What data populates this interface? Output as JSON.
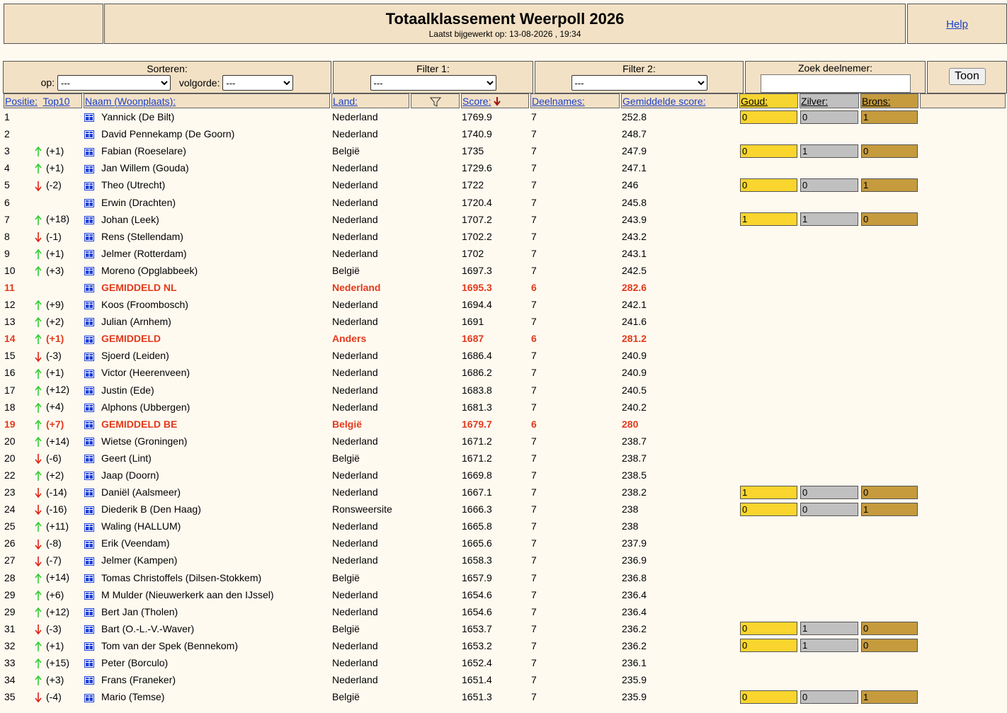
{
  "header": {
    "title": "Totaalklassement Weerpoll 2026",
    "updated": "Laatst bijgewerkt op: 13-08-2026 , 19:34",
    "help": "Help"
  },
  "controls": {
    "sort_label": "Sorteren:",
    "sort_by": "op:",
    "sort_by_value": "---",
    "order": "volgorde:",
    "order_value": "---",
    "filter1": "Filter 1:",
    "filter1_value": "---",
    "filter2": "Filter 2:",
    "filter2_value": "---",
    "search": "Zoek deelnemer:",
    "button": "Toon"
  },
  "table": {
    "columns": {
      "position": "Positie:",
      "top10": "Top10",
      "name": "Naam (Woonplaats):",
      "country": "Land:",
      "score": "Score:",
      "entries": "Deelnames:",
      "average": "Gemiddelde score:",
      "gold": "Goud:",
      "silver": "Zilver:",
      "bronze": "Brons:"
    },
    "rows": [
      {
        "position": 1,
        "change": null,
        "name": "Yannick (De Bilt)",
        "country": "Nederland",
        "score": 1769.9,
        "entries": 7,
        "average": 252.8,
        "medals": [
          0,
          0,
          1
        ]
      },
      {
        "position": 2,
        "change": null,
        "name": "David Pennekamp (De Goorn)",
        "country": "Nederland",
        "score": 1740.9,
        "entries": 7,
        "average": 248.7
      },
      {
        "position": 3,
        "change": "(+1)",
        "name": "Fabian (Roeselare)",
        "country": "België",
        "score": 1735,
        "entries": 7,
        "average": 247.9,
        "medals": [
          0,
          1,
          0
        ]
      },
      {
        "position": 4,
        "change": "(+1)",
        "name": "Jan Willem (Gouda)",
        "country": "Nederland",
        "score": 1729.6,
        "entries": 7,
        "average": 247.1
      },
      {
        "position": 5,
        "change": "(-2)",
        "name": "Theo (Utrecht)",
        "country": "Nederland",
        "score": 1722,
        "entries": 7,
        "average": 246,
        "medals": [
          0,
          0,
          1
        ]
      },
      {
        "position": 6,
        "change": null,
        "name": "Erwin (Drachten)",
        "country": "Nederland",
        "score": 1720.4,
        "entries": 7,
        "average": 245.8
      },
      {
        "position": 7,
        "change": "(+18)",
        "name": "Johan (Leek)",
        "country": "Nederland",
        "score": 1707.2,
        "entries": 7,
        "average": 243.9,
        "medals": [
          1,
          1,
          0
        ]
      },
      {
        "position": 8,
        "change": "(-1)",
        "name": "Rens (Stellendam)",
        "country": "Nederland",
        "score": 1702.2,
        "entries": 7,
        "average": 243.2
      },
      {
        "position": 9,
        "change": "(+1)",
        "name": "Jelmer (Rotterdam)",
        "country": "Nederland",
        "score": 1702,
        "entries": 7,
        "average": 243.1
      },
      {
        "position": 10,
        "change": "(+3)",
        "name": "Moreno (Opglabbeek)",
        "country": "België",
        "score": 1697.3,
        "entries": 7,
        "average": 242.5
      },
      {
        "position": 11,
        "change": null,
        "name": "GEMIDDELD NL",
        "country": "Nederland",
        "score": 1695.3,
        "entries": 6,
        "average": 282.6,
        "highlight": true
      },
      {
        "position": 12,
        "change": "(+9)",
        "name": "Koos (Froombosch)",
        "country": "Nederland",
        "score": 1694.4,
        "entries": 7,
        "average": 242.1
      },
      {
        "position": 13,
        "change": "(+2)",
        "name": "Julian (Arnhem)",
        "country": "Nederland",
        "score": 1691,
        "entries": 7,
        "average": 241.6
      },
      {
        "position": 14,
        "change": "(+1)",
        "name": "GEMIDDELD",
        "country": "Anders",
        "score": 1687,
        "entries": 6,
        "average": 281.2,
        "highlight": true
      },
      {
        "position": 15,
        "change": "(-3)",
        "name": "Sjoerd (Leiden)",
        "country": "Nederland",
        "score": 1686.4,
        "entries": 7,
        "average": 240.9
      },
      {
        "position": 16,
        "change": "(+1)",
        "name": "Victor (Heerenveen)",
        "country": "Nederland",
        "score": 1686.2,
        "entries": 7,
        "average": 240.9
      },
      {
        "position": 17,
        "change": "(+12)",
        "name": "Justin (Ede)",
        "country": "Nederland",
        "score": 1683.8,
        "entries": 7,
        "average": 240.5
      },
      {
        "position": 18,
        "change": "(+4)",
        "name": "Alphons (Ubbergen)",
        "country": "Nederland",
        "score": 1681.3,
        "entries": 7,
        "average": 240.2
      },
      {
        "position": 19,
        "change": "(+7)",
        "name": "GEMIDDELD BE",
        "country": "België",
        "score": 1679.7,
        "entries": 6,
        "average": 280,
        "highlight": true
      },
      {
        "position": 20,
        "change": "(+14)",
        "name": "Wietse (Groningen)",
        "country": "Nederland",
        "score": 1671.2,
        "entries": 7,
        "average": 238.7
      },
      {
        "position": 20,
        "change": "(-6)",
        "name": "Geert (Lint)",
        "country": "België",
        "score": 1671.2,
        "entries": 7,
        "average": 238.7
      },
      {
        "position": 22,
        "change": "(+2)",
        "name": "Jaap (Doorn)",
        "country": "Nederland",
        "score": 1669.8,
        "entries": 7,
        "average": 238.5
      },
      {
        "position": 23,
        "change": "(-14)",
        "name": "Daniël (Aalsmeer)",
        "country": "Nederland",
        "score": 1667.1,
        "entries": 7,
        "average": 238.2,
        "medals": [
          1,
          0,
          0
        ]
      },
      {
        "position": 24,
        "change": "(-16)",
        "name": "Diederik B (Den Haag)",
        "country": "Ronsweersite",
        "score": 1666.3,
        "entries": 7,
        "average": 238,
        "medals": [
          0,
          0,
          1
        ]
      },
      {
        "position": 25,
        "change": "(+11)",
        "name": "Waling (HALLUM)",
        "country": "Nederland",
        "score": 1665.8,
        "entries": 7,
        "average": 238
      },
      {
        "position": 26,
        "change": "(-8)",
        "name": "Erik (Veendam)",
        "country": "Nederland",
        "score": 1665.6,
        "entries": 7,
        "average": 237.9
      },
      {
        "position": 27,
        "change": "(-7)",
        "name": "Jelmer (Kampen)",
        "country": "Nederland",
        "score": 1658.3,
        "entries": 7,
        "average": 236.9
      },
      {
        "position": 28,
        "change": "(+14)",
        "name": "Tomas Christoffels (Dilsen-Stokkem)",
        "country": "België",
        "score": 1657.9,
        "entries": 7,
        "average": 236.8
      },
      {
        "position": 29,
        "change": "(+6)",
        "name": "M Mulder (Nieuwerkerk aan den IJssel)",
        "country": "Nederland",
        "score": 1654.6,
        "entries": 7,
        "average": 236.4
      },
      {
        "position": 29,
        "change": "(+12)",
        "name": "Bert Jan (Tholen)",
        "country": "Nederland",
        "score": 1654.6,
        "entries": 7,
        "average": 236.4
      },
      {
        "position": 31,
        "change": "(-3)",
        "name": "Bart (O.-L.-V.-Waver)",
        "country": "België",
        "score": 1653.7,
        "entries": 7,
        "average": 236.2,
        "medals": [
          0,
          1,
          0
        ]
      },
      {
        "position": 32,
        "change": "(+1)",
        "name": "Tom van der Spek (Bennekom)",
        "country": "Nederland",
        "score": 1653.2,
        "entries": 7,
        "average": 236.2,
        "medals": [
          0,
          1,
          0
        ]
      },
      {
        "position": 33,
        "change": "(+15)",
        "name": "Peter (Borculo)",
        "country": "Nederland",
        "score": 1652.4,
        "entries": 7,
        "average": 236.1
      },
      {
        "position": 34,
        "change": "(+3)",
        "name": "Frans (Franeker)",
        "country": "Nederland",
        "score": 1651.4,
        "entries": 7,
        "average": 235.9
      },
      {
        "position": 35,
        "change": "(-4)",
        "name": "Mario (Temse)",
        "country": "België",
        "score": 1651.3,
        "entries": 7,
        "average": 235.9,
        "medals": [
          0,
          0,
          1
        ]
      }
    ]
  }
}
